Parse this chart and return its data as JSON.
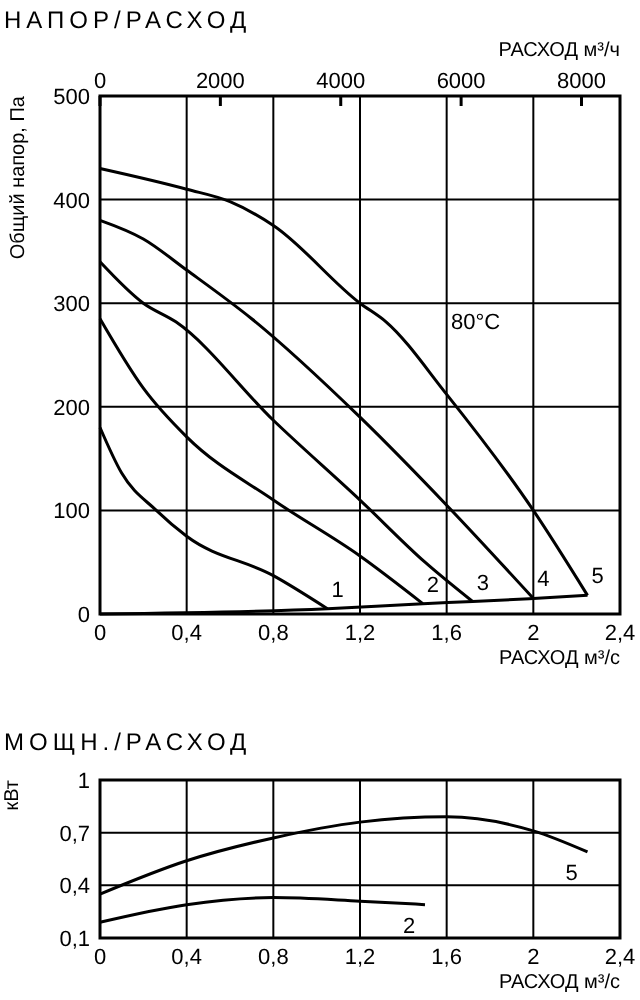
{
  "chart_data": [
    {
      "type": "line",
      "title": "НАПОР/РАСХОД",
      "xlabel": "РАСХОД м³/с",
      "x2label": "РАСХОД м³/ч",
      "ylabel": "Общий напор, Па",
      "xlim": [
        0,
        2.4
      ],
      "xticks": [
        {
          "value": 0,
          "label": "0"
        },
        {
          "value": 0.4,
          "label": "0,4"
        },
        {
          "value": 0.8,
          "label": "0,8"
        },
        {
          "value": 1.2,
          "label": "1,2"
        },
        {
          "value": 1.6,
          "label": "1,6"
        },
        {
          "value": 2,
          "label": "2"
        },
        {
          "value": 2.4,
          "label": "2,4"
        }
      ],
      "x2lim": [
        0,
        8640
      ],
      "x2ticks": [
        0,
        2000,
        4000,
        6000,
        8000
      ],
      "ylim": [
        0,
        500
      ],
      "yticks": [
        0,
        100,
        200,
        300,
        400,
        500
      ],
      "grid": true,
      "legend": false,
      "marker": "none",
      "annotations": [
        "80°C"
      ],
      "series": [
        {
          "name": "1",
          "color": "#000000",
          "x": [
            0,
            0.1,
            0.26,
            0.4,
            0.8,
            1.05
          ],
          "values": [
            180,
            136,
            100,
            75,
            37,
            5
          ]
        },
        {
          "name": "2",
          "color": "#000000",
          "x": [
            0,
            0.2,
            0.4,
            0.8,
            1.2,
            1.49
          ],
          "values": [
            285,
            218,
            171,
            110,
            56,
            10
          ]
        },
        {
          "name": "3",
          "color": "#000000",
          "x": [
            0,
            0.2,
            0.35,
            0.8,
            1.2,
            1.5,
            1.72
          ],
          "values": [
            340,
            300,
            282,
            187,
            110,
            50,
            12
          ]
        },
        {
          "name": "4",
          "color": "#000000",
          "x": [
            0,
            0.2,
            0.4,
            0.7,
            1.2,
            1.6,
            2.0
          ],
          "values": [
            380,
            362,
            332,
            285,
            190,
            105,
            15
          ]
        },
        {
          "name": "5",
          "color": "#000000",
          "x": [
            0,
            0.4,
            0.6,
            0.8,
            1.2,
            1.32,
            1.6,
            2.0,
            2.25
          ],
          "values": [
            430,
            410,
            398,
            375,
            300,
            282,
            212,
            100,
            18
          ]
        },
        {
          "color": "#000000",
          "x": [
            0,
            1.05,
            1.49,
            1.72,
            2.0,
            2.25
          ],
          "values": [
            0,
            5,
            10,
            12,
            15,
            18
          ]
        }
      ]
    },
    {
      "type": "line",
      "title": "МОЩН./РАСХОД",
      "xlabel": "РАСХОД м³/с",
      "ylabel": "кВт",
      "xlim": [
        0,
        2.4
      ],
      "xticks": [
        {
          "value": 0,
          "label": "0"
        },
        {
          "value": 0.4,
          "label": "0,4"
        },
        {
          "value": 0.8,
          "label": "0,8"
        },
        {
          "value": 1.2,
          "label": "1,2"
        },
        {
          "value": 1.6,
          "label": "1,6"
        },
        {
          "value": 2,
          "label": "2"
        },
        {
          "value": 2.4,
          "label": "2,4"
        }
      ],
      "ylim": [
        0.1,
        1
      ],
      "yticks": [
        {
          "value": 0.1,
          "label": "0,1"
        },
        {
          "value": 0.4,
          "label": "0,4"
        },
        {
          "value": 0.7,
          "label": "0,7"
        },
        1
      ],
      "grid": true,
      "legend": false,
      "marker": "none",
      "series": [
        {
          "name": "5",
          "color": "#000000",
          "x": [
            0,
            0.4,
            0.8,
            1.2,
            1.6,
            2.0,
            2.25
          ],
          "values": [
            0.35,
            0.54,
            0.67,
            0.76,
            0.79,
            0.71,
            0.59
          ]
        },
        {
          "name": "2",
          "color": "#000000",
          "x": [
            0,
            0.4,
            0.8,
            1.2,
            1.5
          ],
          "values": [
            0.19,
            0.29,
            0.33,
            0.31,
            0.29
          ]
        }
      ]
    }
  ]
}
